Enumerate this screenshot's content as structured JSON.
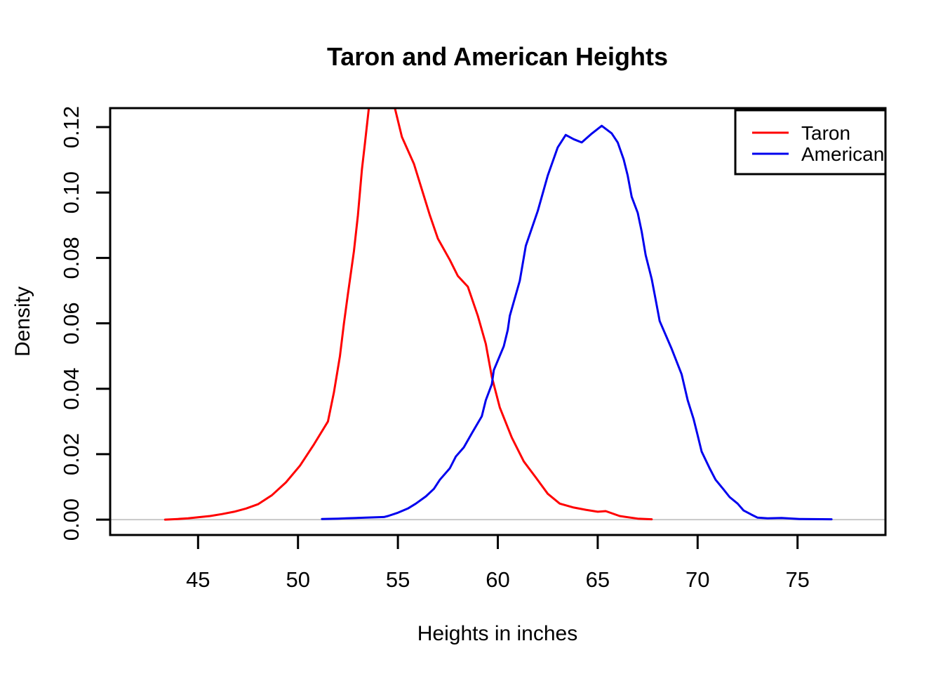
{
  "chart_data": {
    "type": "line",
    "subtype": "density",
    "title": "Taron and American Heights",
    "xlabel": "Heights in inches",
    "ylabel": "Density",
    "xlim": [
      40.6,
      79.4
    ],
    "ylim": [
      -0.0047,
      0.1258
    ],
    "grid": false,
    "background": "#ffffff",
    "frame_color": "#000000",
    "zero_line": {
      "y": 0,
      "color": "#c8c8c8"
    },
    "xticks": {
      "values": [
        45,
        50,
        55,
        60,
        65,
        70,
        75
      ],
      "labels": [
        "45",
        "50",
        "55",
        "60",
        "65",
        "70",
        "75"
      ]
    },
    "yticks": {
      "values": [
        0,
        0.02,
        0.04,
        0.06,
        0.08,
        0.1,
        0.12
      ],
      "labels": [
        "0.00",
        "0.02",
        "0.04",
        "0.06",
        "0.08",
        "0.10",
        "0.12"
      ]
    },
    "legend": {
      "position": "topright",
      "entries": [
        {
          "label": "Taron",
          "color": "#ff0000"
        },
        {
          "label": "American",
          "color": "#0000ee"
        }
      ]
    },
    "series": [
      {
        "name": "Taron",
        "color": "#ff0000",
        "clipped_at_top": true,
        "points": [
          [
            43.35,
            0.0
          ],
          [
            44.0,
            0.0002
          ],
          [
            44.5,
            0.0004
          ],
          [
            45.0,
            0.0007
          ],
          [
            45.6,
            0.0011
          ],
          [
            46.2,
            0.0017
          ],
          [
            46.8,
            0.0024
          ],
          [
            47.4,
            0.0034
          ],
          [
            48.0,
            0.0047
          ],
          [
            48.7,
            0.0075
          ],
          [
            49.4,
            0.0114
          ],
          [
            50.1,
            0.0165
          ],
          [
            50.8,
            0.023
          ],
          [
            51.5,
            0.03
          ],
          [
            51.8,
            0.039
          ],
          [
            52.1,
            0.05
          ],
          [
            52.3,
            0.06
          ],
          [
            52.5,
            0.069
          ],
          [
            52.8,
            0.082
          ],
          [
            53.0,
            0.093
          ],
          [
            53.2,
            0.107
          ],
          [
            53.35,
            0.115
          ],
          [
            53.55,
            0.126
          ],
          [
            53.8,
            0.133
          ],
          [
            54.2,
            0.136
          ],
          [
            54.6,
            0.13
          ],
          [
            54.85,
            0.1258
          ],
          [
            55.2,
            0.117
          ],
          [
            55.8,
            0.1088
          ],
          [
            56.2,
            0.1009
          ],
          [
            56.6,
            0.093
          ],
          [
            57.0,
            0.0859
          ],
          [
            57.6,
            0.0794
          ],
          [
            58.0,
            0.0745
          ],
          [
            58.5,
            0.0712
          ],
          [
            59.0,
            0.0623
          ],
          [
            59.4,
            0.0537
          ],
          [
            59.7,
            0.0436
          ],
          [
            60.1,
            0.0343
          ],
          [
            60.7,
            0.0251
          ],
          [
            61.3,
            0.0178
          ],
          [
            61.9,
            0.0129
          ],
          [
            62.5,
            0.0079
          ],
          [
            63.1,
            0.0049
          ],
          [
            63.8,
            0.0037
          ],
          [
            64.4,
            0.003
          ],
          [
            65.0,
            0.0024
          ],
          [
            65.4,
            0.0026
          ],
          [
            66.1,
            0.0011
          ],
          [
            67.0,
            0.0003
          ],
          [
            67.7,
            0.0001
          ]
        ]
      },
      {
        "name": "American",
        "color": "#0000ee",
        "clipped_at_top": false,
        "points": [
          [
            51.2,
            0.0002
          ],
          [
            52.0,
            0.0003
          ],
          [
            52.4,
            0.0004
          ],
          [
            53.4,
            0.0006
          ],
          [
            54.3,
            0.0008
          ],
          [
            54.5,
            0.0011
          ],
          [
            55.0,
            0.0021
          ],
          [
            55.5,
            0.0034
          ],
          [
            55.9,
            0.0049
          ],
          [
            56.4,
            0.0071
          ],
          [
            56.8,
            0.0094
          ],
          [
            57.1,
            0.0122
          ],
          [
            57.6,
            0.0157
          ],
          [
            57.9,
            0.0193
          ],
          [
            58.3,
            0.0221
          ],
          [
            58.7,
            0.0264
          ],
          [
            59.2,
            0.0316
          ],
          [
            59.4,
            0.0365
          ],
          [
            59.7,
            0.0414
          ],
          [
            59.8,
            0.0457
          ],
          [
            60.3,
            0.053
          ],
          [
            60.5,
            0.058
          ],
          [
            60.6,
            0.0623
          ],
          [
            61.1,
            0.073
          ],
          [
            61.4,
            0.0837
          ],
          [
            62.0,
            0.0944
          ],
          [
            62.5,
            0.1052
          ],
          [
            63.0,
            0.1138
          ],
          [
            63.4,
            0.1176
          ],
          [
            63.8,
            0.1163
          ],
          [
            64.2,
            0.1153
          ],
          [
            64.7,
            0.118
          ],
          [
            65.2,
            0.1204
          ],
          [
            65.7,
            0.1181
          ],
          [
            66.0,
            0.1153
          ],
          [
            66.3,
            0.1101
          ],
          [
            66.5,
            0.1052
          ],
          [
            66.7,
            0.0987
          ],
          [
            67.0,
            0.0938
          ],
          [
            67.2,
            0.088
          ],
          [
            67.4,
            0.0809
          ],
          [
            67.7,
            0.0736
          ],
          [
            67.9,
            0.0672
          ],
          [
            68.1,
            0.0607
          ],
          [
            68.7,
            0.0522
          ],
          [
            69.2,
            0.0444
          ],
          [
            69.5,
            0.0365
          ],
          [
            69.8,
            0.0307
          ],
          [
            70.0,
            0.0258
          ],
          [
            70.2,
            0.0208
          ],
          [
            70.6,
            0.0157
          ],
          [
            70.9,
            0.0122
          ],
          [
            71.3,
            0.0092
          ],
          [
            71.6,
            0.0069
          ],
          [
            72.0,
            0.0049
          ],
          [
            72.3,
            0.0028
          ],
          [
            72.7,
            0.0015
          ],
          [
            73.0,
            0.0006
          ],
          [
            73.5,
            0.0004
          ],
          [
            74.2,
            0.0005
          ],
          [
            75.1,
            0.0002
          ],
          [
            76.7,
            0.0001
          ]
        ]
      }
    ]
  }
}
